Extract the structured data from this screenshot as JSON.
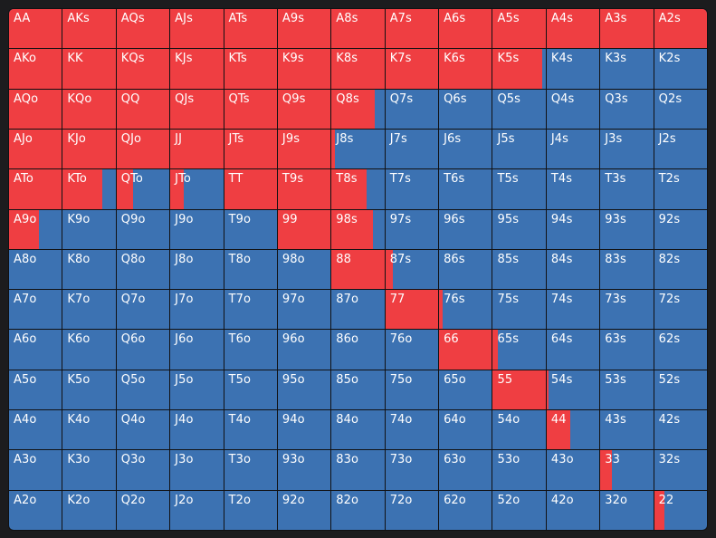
{
  "colors": {
    "raise": "#ef3e42",
    "fold": "#3c72b2",
    "grid_line": "#111113",
    "background": "#1c1c1e",
    "label": "#ffffff"
  },
  "legend": {
    "fill_meaning": "raise_fraction"
  },
  "rows": [
    [
      {
        "label": "AA",
        "raise": 1.0
      },
      {
        "label": "AKs",
        "raise": 1.0
      },
      {
        "label": "AQs",
        "raise": 1.0
      },
      {
        "label": "AJs",
        "raise": 1.0
      },
      {
        "label": "ATs",
        "raise": 1.0
      },
      {
        "label": "A9s",
        "raise": 1.0
      },
      {
        "label": "A8s",
        "raise": 1.0
      },
      {
        "label": "A7s",
        "raise": 1.0
      },
      {
        "label": "A6s",
        "raise": 1.0
      },
      {
        "label": "A5s",
        "raise": 1.0
      },
      {
        "label": "A4s",
        "raise": 1.0
      },
      {
        "label": "A3s",
        "raise": 1.0
      },
      {
        "label": "A2s",
        "raise": 1.0
      }
    ],
    [
      {
        "label": "AKo",
        "raise": 1.0
      },
      {
        "label": "KK",
        "raise": 1.0
      },
      {
        "label": "KQs",
        "raise": 1.0
      },
      {
        "label": "KJs",
        "raise": 1.0
      },
      {
        "label": "KTs",
        "raise": 1.0
      },
      {
        "label": "K9s",
        "raise": 1.0
      },
      {
        "label": "K8s",
        "raise": 1.0
      },
      {
        "label": "K7s",
        "raise": 1.0
      },
      {
        "label": "K6s",
        "raise": 1.0
      },
      {
        "label": "K5s",
        "raise": 0.93
      },
      {
        "label": "K4s",
        "raise": 0.0
      },
      {
        "label": "K3s",
        "raise": 0.0
      },
      {
        "label": "K2s",
        "raise": 0.0
      }
    ],
    [
      {
        "label": "AQo",
        "raise": 1.0
      },
      {
        "label": "KQo",
        "raise": 1.0
      },
      {
        "label": "QQ",
        "raise": 1.0
      },
      {
        "label": "QJs",
        "raise": 1.0
      },
      {
        "label": "QTs",
        "raise": 1.0
      },
      {
        "label": "Q9s",
        "raise": 1.0
      },
      {
        "label": "Q8s",
        "raise": 0.82
      },
      {
        "label": "Q7s",
        "raise": 0.0
      },
      {
        "label": "Q6s",
        "raise": 0.0
      },
      {
        "label": "Q5s",
        "raise": 0.0
      },
      {
        "label": "Q4s",
        "raise": 0.0
      },
      {
        "label": "Q3s",
        "raise": 0.0
      },
      {
        "label": "Q2s",
        "raise": 0.0
      }
    ],
    [
      {
        "label": "AJo",
        "raise": 1.0
      },
      {
        "label": "KJo",
        "raise": 1.0
      },
      {
        "label": "QJo",
        "raise": 1.0
      },
      {
        "label": "JJ",
        "raise": 1.0
      },
      {
        "label": "JTs",
        "raise": 1.0
      },
      {
        "label": "J9s",
        "raise": 1.0
      },
      {
        "label": "J8s",
        "raise": 0.07
      },
      {
        "label": "J7s",
        "raise": 0.0
      },
      {
        "label": "J6s",
        "raise": 0.0
      },
      {
        "label": "J5s",
        "raise": 0.0
      },
      {
        "label": "J4s",
        "raise": 0.0
      },
      {
        "label": "J3s",
        "raise": 0.0
      },
      {
        "label": "J2s",
        "raise": 0.0
      }
    ],
    [
      {
        "label": "ATo",
        "raise": 1.0
      },
      {
        "label": "KTo",
        "raise": 0.74
      },
      {
        "label": "QTo",
        "raise": 0.32
      },
      {
        "label": "JTo",
        "raise": 0.26
      },
      {
        "label": "TT",
        "raise": 1.0
      },
      {
        "label": "T9s",
        "raise": 1.0
      },
      {
        "label": "T8s",
        "raise": 0.66
      },
      {
        "label": "T7s",
        "raise": 0.0
      },
      {
        "label": "T6s",
        "raise": 0.0
      },
      {
        "label": "T5s",
        "raise": 0.0
      },
      {
        "label": "T4s",
        "raise": 0.0
      },
      {
        "label": "T3s",
        "raise": 0.0
      },
      {
        "label": "T2s",
        "raise": 0.0
      }
    ],
    [
      {
        "label": "A9o",
        "raise": 0.57
      },
      {
        "label": "K9o",
        "raise": 0.0
      },
      {
        "label": "Q9o",
        "raise": 0.0
      },
      {
        "label": "J9o",
        "raise": 0.0
      },
      {
        "label": "T9o",
        "raise": 0.0
      },
      {
        "label": "99",
        "raise": 1.0
      },
      {
        "label": "98s",
        "raise": 0.78
      },
      {
        "label": "97s",
        "raise": 0.0
      },
      {
        "label": "96s",
        "raise": 0.0
      },
      {
        "label": "95s",
        "raise": 0.0
      },
      {
        "label": "94s",
        "raise": 0.0
      },
      {
        "label": "93s",
        "raise": 0.0
      },
      {
        "label": "92s",
        "raise": 0.0
      }
    ],
    [
      {
        "label": "A8o",
        "raise": 0.0
      },
      {
        "label": "K8o",
        "raise": 0.0
      },
      {
        "label": "Q8o",
        "raise": 0.0
      },
      {
        "label": "J8o",
        "raise": 0.0
      },
      {
        "label": "T8o",
        "raise": 0.0
      },
      {
        "label": "98o",
        "raise": 0.0
      },
      {
        "label": "88",
        "raise": 1.0
      },
      {
        "label": "87s",
        "raise": 0.15
      },
      {
        "label": "86s",
        "raise": 0.0
      },
      {
        "label": "85s",
        "raise": 0.0
      },
      {
        "label": "84s",
        "raise": 0.0
      },
      {
        "label": "83s",
        "raise": 0.0
      },
      {
        "label": "82s",
        "raise": 0.0
      }
    ],
    [
      {
        "label": "A7o",
        "raise": 0.0
      },
      {
        "label": "K7o",
        "raise": 0.0
      },
      {
        "label": "Q7o",
        "raise": 0.0
      },
      {
        "label": "J7o",
        "raise": 0.0
      },
      {
        "label": "T7o",
        "raise": 0.0
      },
      {
        "label": "97o",
        "raise": 0.0
      },
      {
        "label": "87o",
        "raise": 0.0
      },
      {
        "label": "77",
        "raise": 1.0
      },
      {
        "label": "76s",
        "raise": 0.07
      },
      {
        "label": "75s",
        "raise": 0.0
      },
      {
        "label": "74s",
        "raise": 0.0
      },
      {
        "label": "73s",
        "raise": 0.0
      },
      {
        "label": "72s",
        "raise": 0.0
      }
    ],
    [
      {
        "label": "A6o",
        "raise": 0.0
      },
      {
        "label": "K6o",
        "raise": 0.0
      },
      {
        "label": "Q6o",
        "raise": 0.0
      },
      {
        "label": "J6o",
        "raise": 0.0
      },
      {
        "label": "T6o",
        "raise": 0.0
      },
      {
        "label": "96o",
        "raise": 0.0
      },
      {
        "label": "86o",
        "raise": 0.0
      },
      {
        "label": "76o",
        "raise": 0.0
      },
      {
        "label": "66",
        "raise": 1.0
      },
      {
        "label": "65s",
        "raise": 0.1
      },
      {
        "label": "64s",
        "raise": 0.0
      },
      {
        "label": "63s",
        "raise": 0.0
      },
      {
        "label": "62s",
        "raise": 0.0
      }
    ],
    [
      {
        "label": "A5o",
        "raise": 0.0
      },
      {
        "label": "K5o",
        "raise": 0.0
      },
      {
        "label": "Q5o",
        "raise": 0.0
      },
      {
        "label": "J5o",
        "raise": 0.0
      },
      {
        "label": "T5o",
        "raise": 0.0
      },
      {
        "label": "95o",
        "raise": 0.0
      },
      {
        "label": "85o",
        "raise": 0.0
      },
      {
        "label": "75o",
        "raise": 0.0
      },
      {
        "label": "65o",
        "raise": 0.0
      },
      {
        "label": "55",
        "raise": 1.0
      },
      {
        "label": "54s",
        "raise": 0.03
      },
      {
        "label": "53s",
        "raise": 0.0
      },
      {
        "label": "52s",
        "raise": 0.0
      }
    ],
    [
      {
        "label": "A4o",
        "raise": 0.0
      },
      {
        "label": "K4o",
        "raise": 0.0
      },
      {
        "label": "Q4o",
        "raise": 0.0
      },
      {
        "label": "J4o",
        "raise": 0.0
      },
      {
        "label": "T4o",
        "raise": 0.0
      },
      {
        "label": "94o",
        "raise": 0.0
      },
      {
        "label": "84o",
        "raise": 0.0
      },
      {
        "label": "74o",
        "raise": 0.0
      },
      {
        "label": "64o",
        "raise": 0.0
      },
      {
        "label": "54o",
        "raise": 0.0
      },
      {
        "label": "44",
        "raise": 0.45
      },
      {
        "label": "43s",
        "raise": 0.0
      },
      {
        "label": "42s",
        "raise": 0.0
      }
    ],
    [
      {
        "label": "A3o",
        "raise": 0.0
      },
      {
        "label": "K3o",
        "raise": 0.0
      },
      {
        "label": "Q3o",
        "raise": 0.0
      },
      {
        "label": "J3o",
        "raise": 0.0
      },
      {
        "label": "T3o",
        "raise": 0.0
      },
      {
        "label": "93o",
        "raise": 0.0
      },
      {
        "label": "83o",
        "raise": 0.0
      },
      {
        "label": "73o",
        "raise": 0.0
      },
      {
        "label": "63o",
        "raise": 0.0
      },
      {
        "label": "53o",
        "raise": 0.0
      },
      {
        "label": "43o",
        "raise": 0.0
      },
      {
        "label": "33",
        "raise": 0.22
      },
      {
        "label": "32s",
        "raise": 0.0
      }
    ],
    [
      {
        "label": "A2o",
        "raise": 0.0
      },
      {
        "label": "K2o",
        "raise": 0.0
      },
      {
        "label": "Q2o",
        "raise": 0.0
      },
      {
        "label": "J2o",
        "raise": 0.0
      },
      {
        "label": "T2o",
        "raise": 0.0
      },
      {
        "label": "92o",
        "raise": 0.0
      },
      {
        "label": "82o",
        "raise": 0.0
      },
      {
        "label": "72o",
        "raise": 0.0
      },
      {
        "label": "62o",
        "raise": 0.0
      },
      {
        "label": "52o",
        "raise": 0.0
      },
      {
        "label": "42o",
        "raise": 0.0
      },
      {
        "label": "32o",
        "raise": 0.0
      },
      {
        "label": "22",
        "raise": 0.2
      }
    ]
  ]
}
